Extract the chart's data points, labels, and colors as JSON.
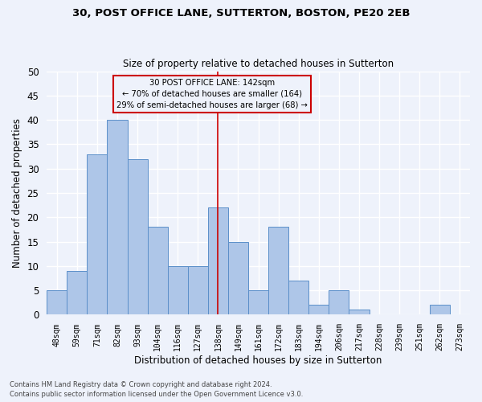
{
  "title1": "30, POST OFFICE LANE, SUTTERTON, BOSTON, PE20 2EB",
  "title2": "Size of property relative to detached houses in Sutterton",
  "xlabel": "Distribution of detached houses by size in Sutterton",
  "ylabel": "Number of detached properties",
  "categories": [
    "48sqm",
    "59sqm",
    "71sqm",
    "82sqm",
    "93sqm",
    "104sqm",
    "116sqm",
    "127sqm",
    "138sqm",
    "149sqm",
    "161sqm",
    "172sqm",
    "183sqm",
    "194sqm",
    "206sqm",
    "217sqm",
    "228sqm",
    "239sqm",
    "251sqm",
    "262sqm",
    "273sqm"
  ],
  "values": [
    5,
    9,
    33,
    40,
    32,
    18,
    10,
    10,
    22,
    15,
    5,
    18,
    7,
    2,
    5,
    1,
    0,
    0,
    0,
    2,
    0
  ],
  "bar_color": "#aec6e8",
  "bar_edge_color": "#5b8fc9",
  "property_line_x": 8,
  "annotation_line1": "30 POST OFFICE LANE: 142sqm",
  "annotation_line2": "← 70% of detached houses are smaller (164)",
  "annotation_line3": "29% of semi-detached houses are larger (68) →",
  "annotation_box_color": "#cc0000",
  "ylim": [
    0,
    50
  ],
  "yticks": [
    0,
    5,
    10,
    15,
    20,
    25,
    30,
    35,
    40,
    45,
    50
  ],
  "background_color": "#eef2fb",
  "grid_color": "#ffffff",
  "footnote1": "Contains HM Land Registry data © Crown copyright and database right 2024.",
  "footnote2": "Contains public sector information licensed under the Open Government Licence v3.0."
}
